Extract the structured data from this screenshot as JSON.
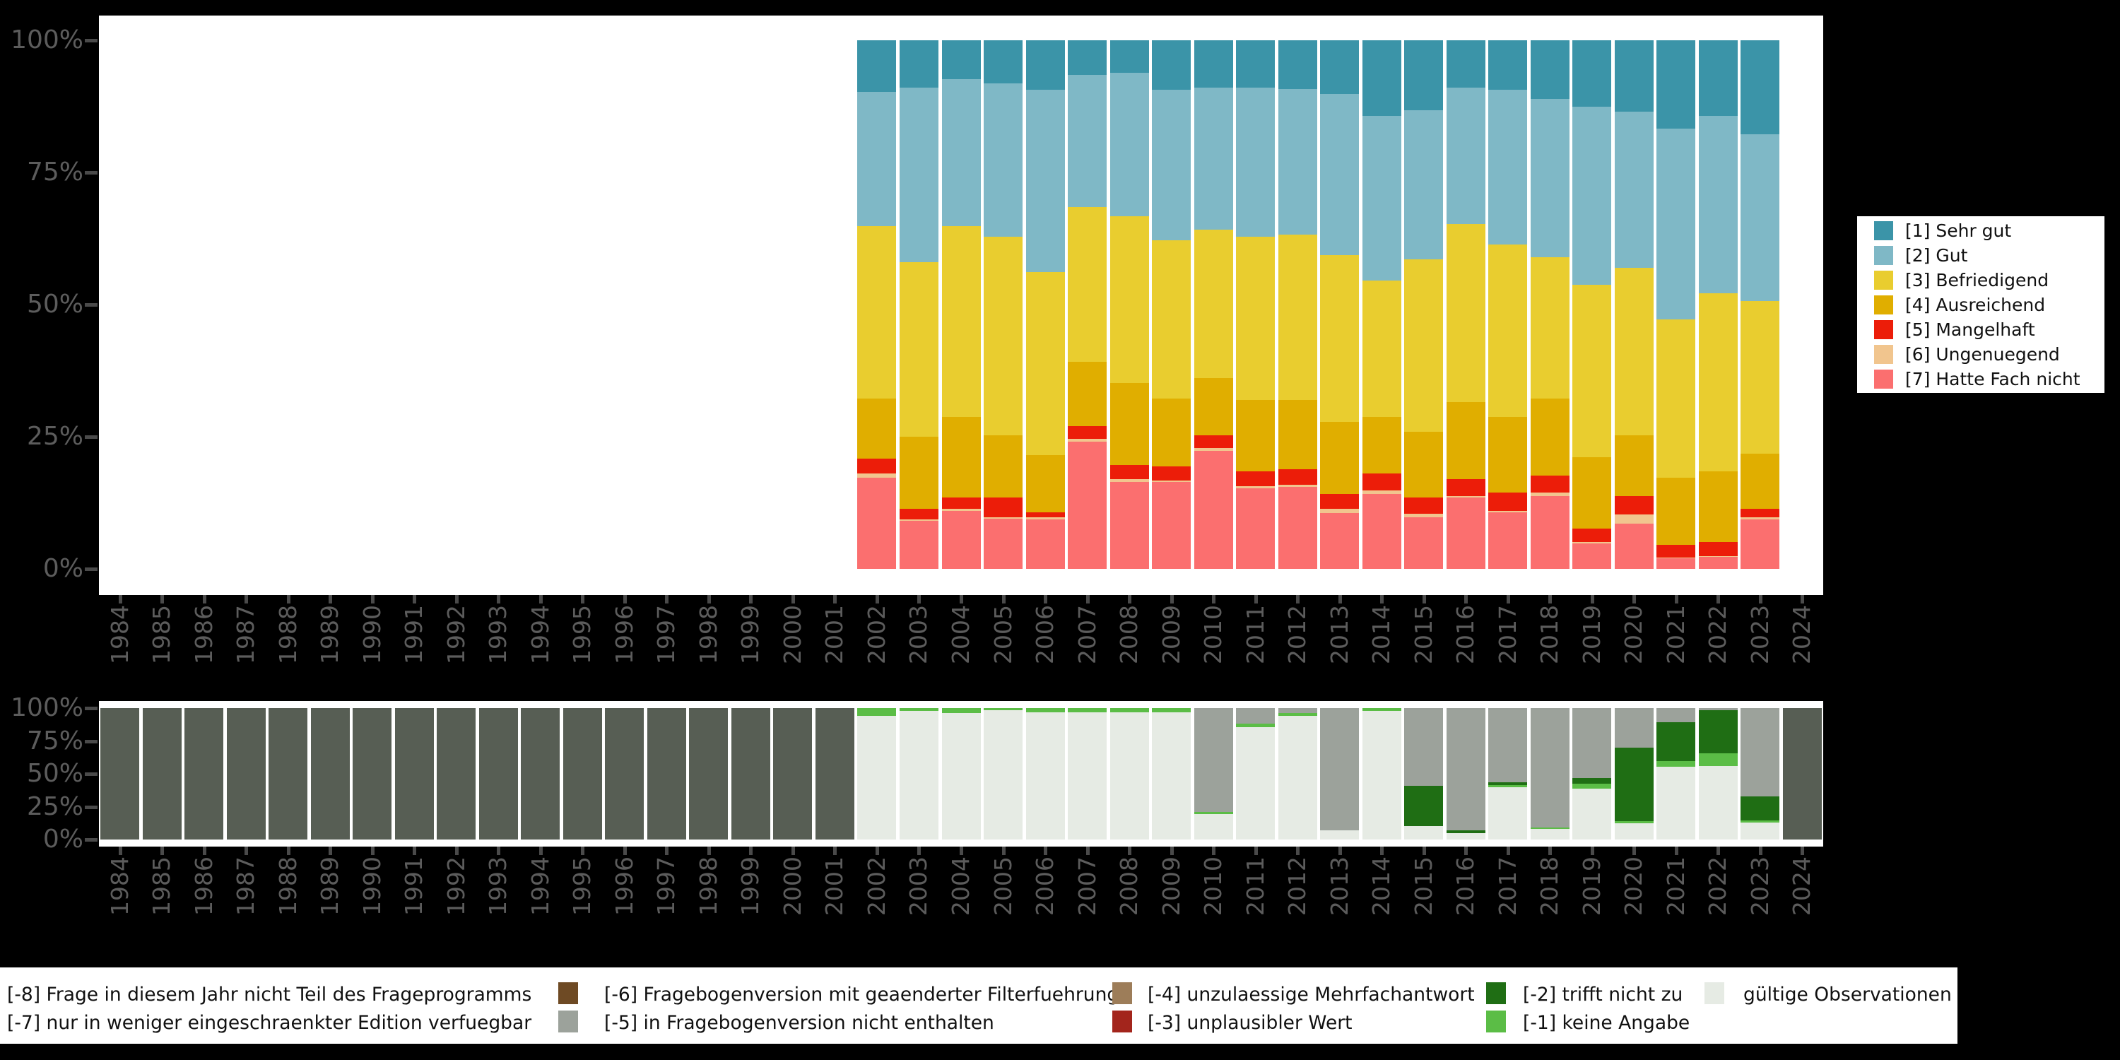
{
  "figure": {
    "background": "#000000",
    "panel_background": "#ffffff",
    "axis_text_color": "#5c5c5c",
    "tick_color": "#4a4a4a"
  },
  "chart_data": [
    {
      "id": "grades-distribution",
      "type": "bar",
      "stacked": true,
      "unit": "percent",
      "title": "",
      "xlabel": "",
      "ylabel": "",
      "ylim": [
        0,
        100
      ],
      "grid": false,
      "legend_position": "right",
      "x_axis_years": [
        "1984",
        "1985",
        "1986",
        "1987",
        "1988",
        "1989",
        "1990",
        "1991",
        "1992",
        "1993",
        "1994",
        "1995",
        "1996",
        "1997",
        "1998",
        "1999",
        "2000",
        "2001",
        "2002",
        "2003",
        "2004",
        "2005",
        "2006",
        "2007",
        "2008",
        "2009",
        "2010",
        "2011",
        "2012",
        "2013",
        "2014",
        "2015",
        "2016",
        "2017",
        "2018",
        "2019",
        "2020",
        "2021",
        "2022",
        "2023",
        "2024"
      ],
      "y_ticks": [
        "100%",
        "75%",
        "50%",
        "25%",
        "0%"
      ],
      "data_years": [
        "2002",
        "2003",
        "2004",
        "2005",
        "2006",
        "2007",
        "2008",
        "2009",
        "2010",
        "2011",
        "2012",
        "2013",
        "2014",
        "2015",
        "2016",
        "2017",
        "2018",
        "2019",
        "2020",
        "2021",
        "2022",
        "2023"
      ],
      "series": [
        {
          "name": "[7] Hatte Fach nicht",
          "color": "#FB6F6F",
          "values": [
            17.3,
            9.1,
            10.9,
            9.5,
            9.4,
            24.1,
            16.5,
            16.4,
            22.3,
            15.2,
            15.5,
            10.5,
            14.2,
            9.7,
            13.5,
            10.7,
            13.8,
            4.8,
            8.6,
            2.0,
            2.3,
            9.4
          ]
        },
        {
          "name": "[6] Ungenuegend",
          "color": "#F1C58E",
          "values": [
            0.7,
            0.3,
            0.5,
            0.2,
            0.3,
            0.5,
            0.5,
            0.3,
            0.6,
            0.4,
            0.4,
            0.9,
            0.7,
            0.7,
            0.3,
            0.3,
            0.7,
            0.3,
            1.7,
            0.1,
            0.1,
            0.3
          ]
        },
        {
          "name": "[5] Mangelhaft",
          "color": "#EC1D09",
          "values": [
            2.8,
            2.0,
            2.1,
            3.8,
            1.0,
            2.4,
            2.7,
            2.7,
            2.4,
            2.8,
            3.0,
            2.8,
            3.1,
            3.1,
            3.2,
            3.5,
            3.1,
            2.5,
            3.5,
            2.4,
            2.7,
            1.7
          ]
        },
        {
          "name": "[4] Ausreichend",
          "color": "#E0AE00",
          "values": [
            11.4,
            13.6,
            15.3,
            11.8,
            10.8,
            12.2,
            15.4,
            12.8,
            10.8,
            13.5,
            13.1,
            13.6,
            10.8,
            12.5,
            14.5,
            14.2,
            14.6,
            13.5,
            11.5,
            12.8,
            13.3,
            10.4
          ]
        },
        {
          "name": "[3] Befriedigend",
          "color": "#E9CD2F",
          "values": [
            32.7,
            33.0,
            36.1,
            37.5,
            34.7,
            29.2,
            31.6,
            29.9,
            28.1,
            31.0,
            31.3,
            31.6,
            25.7,
            32.6,
            33.7,
            32.7,
            26.8,
            32.7,
            31.6,
            29.9,
            33.7,
            28.9
          ]
        },
        {
          "name": "[2] Gut",
          "color": "#7FB8C6",
          "values": [
            25.4,
            33.0,
            27.8,
            29.0,
            34.4,
            25.0,
            27.1,
            28.5,
            26.8,
            28.1,
            27.5,
            30.5,
            31.2,
            28.2,
            25.8,
            29.3,
            29.9,
            33.7,
            29.6,
            36.1,
            33.6,
            31.5
          ]
        },
        {
          "name": "[1] Sehr gut",
          "color": "#3B94A8",
          "values": [
            9.7,
            9.0,
            7.3,
            8.2,
            9.4,
            6.6,
            6.2,
            9.4,
            9.0,
            9.0,
            9.2,
            10.1,
            14.3,
            13.2,
            9.0,
            9.3,
            11.1,
            12.5,
            13.5,
            16.7,
            14.3,
            17.8
          ]
        }
      ]
    },
    {
      "id": "missing-values",
      "type": "bar",
      "stacked": true,
      "unit": "percent",
      "title": "",
      "xlabel": "",
      "ylabel": "",
      "ylim": [
        0,
        100
      ],
      "grid": false,
      "legend_position": "bottom",
      "x_axis_years": [
        "1984",
        "1985",
        "1986",
        "1987",
        "1988",
        "1989",
        "1990",
        "1991",
        "1992",
        "1993",
        "1994",
        "1995",
        "1996",
        "1997",
        "1998",
        "1999",
        "2000",
        "2001",
        "2002",
        "2003",
        "2004",
        "2005",
        "2006",
        "2007",
        "2008",
        "2009",
        "2010",
        "2011",
        "2012",
        "2013",
        "2014",
        "2015",
        "2016",
        "2017",
        "2018",
        "2019",
        "2020",
        "2021",
        "2022",
        "2023",
        "2024"
      ],
      "y_ticks": [
        "100%",
        "75%",
        "50%",
        "25%",
        "0%"
      ],
      "data_years": [
        "1984",
        "1985",
        "1986",
        "1987",
        "1988",
        "1989",
        "1990",
        "1991",
        "1992",
        "1993",
        "1994",
        "1995",
        "1996",
        "1997",
        "1998",
        "1999",
        "2000",
        "2001",
        "2002",
        "2003",
        "2004",
        "2005",
        "2006",
        "2007",
        "2008",
        "2009",
        "2010",
        "2011",
        "2012",
        "2013",
        "2014",
        "2015",
        "2016",
        "2017",
        "2018",
        "2019",
        "2020",
        "2021",
        "2022",
        "2023",
        "2024"
      ],
      "series": [
        {
          "name": "gültige Observationen",
          "color": "#E6EBE4",
          "values": [
            0,
            0,
            0,
            0,
            0,
            0,
            0,
            0,
            0,
            0,
            0,
            0,
            0,
            0,
            0,
            0,
            0,
            0,
            94,
            98,
            96,
            98.5,
            97,
            97,
            97,
            97,
            19.5,
            85.5,
            94,
            7,
            97.7,
            10.3,
            5,
            39.7,
            7.8,
            38.9,
            12.6,
            55.2,
            56.1,
            12.7,
            0
          ]
        },
        {
          "name": "[-1] keine Angabe",
          "color": "#5BBD46",
          "values": [
            0,
            0,
            0,
            0,
            0,
            0,
            0,
            0,
            0,
            0,
            0,
            0,
            0,
            0,
            0,
            0,
            0,
            0,
            6,
            2,
            4,
            1.5,
            3,
            3,
            3,
            3,
            1.5,
            2.5,
            2,
            0,
            2.3,
            0,
            0,
            1.8,
            1.2,
            3.6,
            1.6,
            4.5,
            9.4,
            1.6,
            0
          ]
        },
        {
          "name": "[-2] trifft nicht zu",
          "color": "#1F6E14",
          "values": [
            0,
            0,
            0,
            0,
            0,
            0,
            0,
            0,
            0,
            0,
            0,
            0,
            0,
            0,
            0,
            0,
            0,
            0,
            0,
            0,
            0,
            0,
            0,
            0,
            0,
            0,
            0,
            0,
            0,
            0,
            0,
            30.3,
            2,
            1.8,
            0,
            4.5,
            55.8,
            29.4,
            33,
            18.7,
            0
          ]
        },
        {
          "name": "[-5] in Fragebogenversion nicht enthalten",
          "color": "#9CA29B",
          "values": [
            0,
            0,
            0,
            0,
            0,
            0,
            0,
            0,
            0,
            0,
            0,
            0,
            0,
            0,
            0,
            0,
            0,
            0,
            0,
            0,
            0,
            0,
            0,
            0,
            0,
            0,
            79,
            12,
            4,
            93,
            0,
            59.4,
            93,
            56.7,
            91,
            53,
            30,
            10.9,
            1.5,
            67,
            0
          ]
        },
        {
          "name": "[-8] Frage in diesem Jahr nicht Teil des Frageprogramms",
          "color": "#575E54",
          "values": [
            100,
            100,
            100,
            100,
            100,
            100,
            100,
            100,
            100,
            100,
            100,
            100,
            100,
            100,
            100,
            100,
            100,
            100,
            0,
            0,
            0,
            0,
            0,
            0,
            0,
            0,
            0,
            0,
            0,
            0,
            0,
            0,
            0,
            0,
            0,
            0,
            0,
            0,
            0,
            0,
            100
          ]
        }
      ]
    }
  ],
  "legend_top_right": {
    "items": [
      {
        "label": "[1] Sehr gut",
        "color": "#3B94A8"
      },
      {
        "label": "[2] Gut",
        "color": "#7FB8C6"
      },
      {
        "label": "[3] Befriedigend",
        "color": "#E9CD2F"
      },
      {
        "label": "[4] Ausreichend",
        "color": "#E0AE00"
      },
      {
        "label": "[5] Mangelhaft",
        "color": "#EC1D09"
      },
      {
        "label": "[6] Ungenuegend",
        "color": "#F1C58E"
      },
      {
        "label": "[7] Hatte Fach nicht",
        "color": "#FB6F6F"
      }
    ]
  },
  "legend_bottom": {
    "row1": [
      {
        "label": "[-8] Frage in diesem Jahr nicht Teil des Frageprogramms",
        "color": "#575E54",
        "swatch_visible": false
      },
      {
        "label": "[-6] Fragebogenversion mit geaenderter Filterfuehrung",
        "color": "#6E4A24",
        "swatch_visible": true
      },
      {
        "label": "[-4] unzulaessige Mehrfachantwort",
        "color": "#9D7D59",
        "swatch_visible": true
      },
      {
        "label": "[-2] trifft nicht zu",
        "color": "#1F6E14",
        "swatch_visible": true
      },
      {
        "label": "gültige Observationen",
        "color": "#E6EBE4",
        "swatch_visible": true
      }
    ],
    "row2": [
      {
        "label": "[-7] nur in weniger eingeschraenkter Edition verfuegbar",
        "color": "#9CA29B",
        "swatch_visible": false
      },
      {
        "label": "[-5] in Fragebogenversion nicht enthalten",
        "color": "#9CA29B",
        "swatch_visible": true
      },
      {
        "label": "[-3] unplausibler Wert",
        "color": "#A3251C",
        "swatch_visible": true
      },
      {
        "label": "[-1] keine Angabe",
        "color": "#5BBD46",
        "swatch_visible": true
      }
    ]
  }
}
